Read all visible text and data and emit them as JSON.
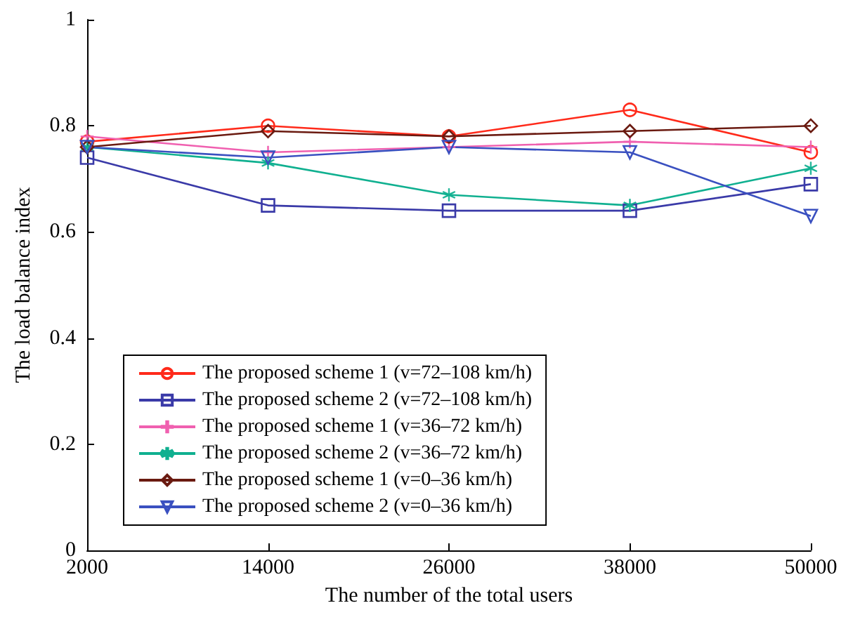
{
  "chart_data": {
    "type": "line",
    "xlabel": "The number of the total users",
    "ylabel": "The load balance index",
    "x": [
      2000,
      14000,
      26000,
      38000,
      50000
    ],
    "xlim": [
      2000,
      50000
    ],
    "xticks": [
      2000,
      14000,
      26000,
      38000,
      50000
    ],
    "ylim": [
      0,
      1
    ],
    "yticks": [
      0,
      0.2,
      0.4,
      0.6,
      0.8,
      1
    ],
    "grid": false,
    "legend": "bottom left",
    "series": [
      {
        "name": "The proposed scheme 1 (v=72–108 km/h)",
        "color": "#ff2a1a",
        "marker": "circle",
        "values": [
          0.77,
          0.8,
          0.78,
          0.83,
          0.75
        ]
      },
      {
        "name": "The proposed scheme 2 (v=72–108 km/h)",
        "color": "#3a3aa8",
        "marker": "square",
        "values": [
          0.74,
          0.65,
          0.64,
          0.64,
          0.69
        ]
      },
      {
        "name": "The proposed scheme 1 (v=36–72 km/h)",
        "color": "#f060b0",
        "marker": "cross",
        "values": [
          0.78,
          0.75,
          0.76,
          0.77,
          0.76
        ]
      },
      {
        "name": "The proposed scheme 2 (v=36–72 km/h)",
        "color": "#10b090",
        "marker": "star",
        "values": [
          0.76,
          0.73,
          0.67,
          0.65,
          0.72
        ]
      },
      {
        "name": "The proposed scheme 1 (v=0–36 km/h)",
        "color": "#6a1a10",
        "marker": "diamond",
        "values": [
          0.76,
          0.79,
          0.78,
          0.79,
          0.8
        ]
      },
      {
        "name": "The proposed scheme 2 (v=0–36 km/h)",
        "color": "#3a50c0",
        "marker": "triangle",
        "values": [
          0.76,
          0.74,
          0.76,
          0.75,
          0.63
        ]
      }
    ]
  }
}
